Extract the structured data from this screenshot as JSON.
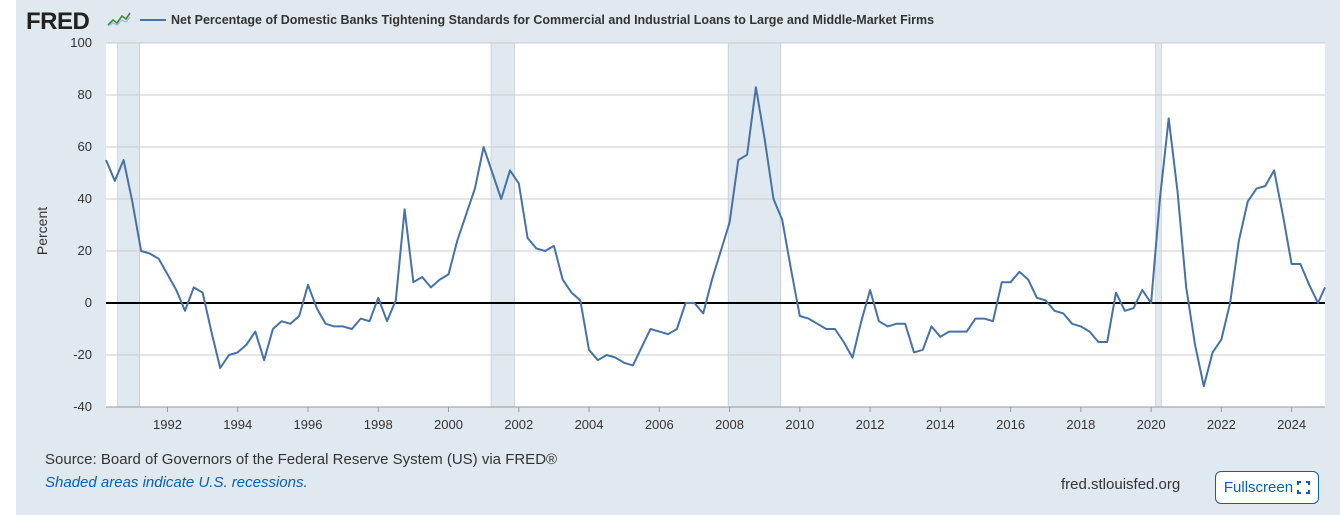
{
  "header": {
    "logo_text": "FRED",
    "series_title": "Net Percentage of Domestic Banks Tightening Standards for Commercial and Industrial Loans to Large and Middle-Market Firms"
  },
  "footer": {
    "source": "Source: Board of Governors of the Federal Reserve System (US) via FRED®",
    "recession_note": "Shaded areas indicate U.S. recessions.",
    "site": "fred.stlouisfed.org",
    "fullscreen_label": "Fullscreen"
  },
  "colors": {
    "series": "#4572a7",
    "recession": "#e1e9f0",
    "zero_line": "#000000",
    "frame": "#e1e9f0",
    "link": "#0b5fb1"
  },
  "chart_data": {
    "type": "line",
    "title": "",
    "xlabel": "",
    "ylabel": "Percent",
    "xlim": [
      1990.25,
      2024.95
    ],
    "ylim": [
      -40,
      100
    ],
    "y_ticks": [
      -40,
      -20,
      0,
      20,
      40,
      60,
      80,
      100
    ],
    "x_ticks": [
      1992,
      1994,
      1996,
      1998,
      2000,
      2002,
      2004,
      2006,
      2008,
      2010,
      2012,
      2014,
      2016,
      2018,
      2020,
      2022,
      2024
    ],
    "grid": "horizontal",
    "recessions": [
      [
        1990.58,
        1991.21
      ],
      [
        2001.21,
        2001.88
      ],
      [
        2007.96,
        2009.46
      ],
      [
        2020.13,
        2020.29
      ]
    ],
    "series": [
      {
        "name": "Net Percentage of Domestic Banks Tightening Standards for Commercial and Industrial Loans to Large and Middle-Market Firms",
        "x": [
          1990.25,
          1990.5,
          1990.75,
          1991.0,
          1991.25,
          1991.5,
          1991.75,
          1992.0,
          1992.25,
          1992.5,
          1992.75,
          1993.0,
          1993.25,
          1993.5,
          1993.75,
          1994.0,
          1994.25,
          1994.5,
          1994.75,
          1995.0,
          1995.25,
          1995.5,
          1995.75,
          1996.0,
          1996.25,
          1996.5,
          1996.75,
          1997.0,
          1997.25,
          1997.5,
          1997.75,
          1998.0,
          1998.25,
          1998.5,
          1998.75,
          1999.0,
          1999.25,
          1999.5,
          1999.75,
          2000.0,
          2000.25,
          2000.5,
          2000.75,
          2001.0,
          2001.25,
          2001.5,
          2001.75,
          2002.0,
          2002.25,
          2002.5,
          2002.75,
          2003.0,
          2003.25,
          2003.5,
          2003.75,
          2004.0,
          2004.25,
          2004.5,
          2004.75,
          2005.0,
          2005.25,
          2005.5,
          2005.75,
          2006.0,
          2006.25,
          2006.5,
          2006.75,
          2007.0,
          2007.25,
          2007.5,
          2007.75,
          2008.0,
          2008.25,
          2008.5,
          2008.75,
          2009.0,
          2009.25,
          2009.5,
          2009.75,
          2010.0,
          2010.25,
          2010.5,
          2010.75,
          2011.0,
          2011.25,
          2011.5,
          2011.75,
          2012.0,
          2012.25,
          2012.5,
          2012.75,
          2013.0,
          2013.25,
          2013.5,
          2013.75,
          2014.0,
          2014.25,
          2014.5,
          2014.75,
          2015.0,
          2015.25,
          2015.5,
          2015.75,
          2016.0,
          2016.25,
          2016.5,
          2016.75,
          2017.0,
          2017.25,
          2017.5,
          2017.75,
          2018.0,
          2018.25,
          2018.5,
          2018.75,
          2019.0,
          2019.25,
          2019.5,
          2019.75,
          2020.0,
          2020.25,
          2020.5,
          2020.75,
          2021.0,
          2021.25,
          2021.5,
          2021.75,
          2022.0,
          2022.25,
          2022.5,
          2022.75,
          2023.0,
          2023.25,
          2023.5,
          2023.75,
          2024.0,
          2024.25,
          2024.5,
          2024.75,
          2024.95
        ],
        "values": [
          55,
          47,
          55,
          39,
          20,
          19,
          17,
          11,
          5,
          -3,
          6,
          4,
          -11,
          -25,
          -20,
          -19,
          -16,
          -11,
          -22,
          -10,
          -7,
          -8,
          -5,
          7,
          -2,
          -8,
          -9,
          -9,
          -10,
          -6,
          -7,
          2,
          -7,
          1,
          36,
          8,
          10,
          6,
          9,
          11,
          24,
          34,
          44,
          60,
          50,
          40,
          51,
          46,
          25,
          21,
          20,
          22,
          9,
          4,
          1,
          -18,
          -22,
          -20,
          -21,
          -23,
          -24,
          -17,
          -10,
          -11,
          -12,
          -10,
          0,
          0,
          -4,
          9,
          20,
          31,
          55,
          57,
          83,
          63,
          40,
          32,
          13,
          -5,
          -6,
          -8,
          -10,
          -10,
          -15,
          -21,
          -7,
          5,
          -7,
          -9,
          -8,
          -8,
          -19,
          -18,
          -9,
          -13,
          -11,
          -11,
          -11,
          -6,
          -6,
          -7,
          8,
          8,
          12,
          9,
          2,
          1,
          -3,
          -4,
          -8,
          -9,
          -11,
          -15,
          -15,
          4,
          -3,
          -2,
          5,
          0,
          40,
          71,
          43,
          6,
          -16,
          -32,
          -19,
          -14,
          0,
          24,
          39,
          44,
          45,
          51,
          34,
          15,
          15,
          7,
          0,
          6
        ]
      }
    ]
  }
}
